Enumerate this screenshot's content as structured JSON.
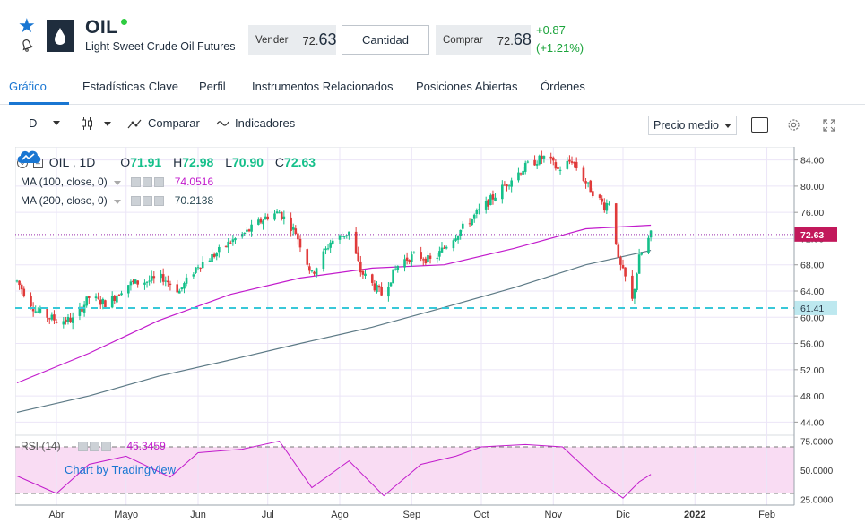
{
  "header": {
    "symbol": "OIL",
    "name": "Light Sweet Crude Oil Futures",
    "sell_label": "Vender",
    "sell_price_small": "72.",
    "sell_price_big": "63",
    "quantity_label": "Cantidad",
    "buy_label": "Comprar",
    "buy_price_small": "72.",
    "buy_price_big": "68",
    "change": "+0.87",
    "change_pct": "(+1.21%)"
  },
  "tabs": [
    {
      "label": "Gráfico"
    },
    {
      "label": "Estadísticas Clave"
    },
    {
      "label": "Perfil"
    },
    {
      "label": "Instrumentos Relacionados"
    },
    {
      "label": "Posiciones Abiertas"
    },
    {
      "label": "Órdenes"
    }
  ],
  "toolbar": {
    "interval": "D",
    "compare": "Comparar",
    "indicators": "Indicadores",
    "price_type": "Precio medio"
  },
  "legend": {
    "title": "OIL , 1D",
    "o_label": "O",
    "o": "71.91",
    "h_label": "H",
    "h": "72.98",
    "l_label": "L",
    "l": "70.90",
    "c_label": "C",
    "c": "72.63",
    "ma100_label": "MA (100, close, 0)",
    "ma100_value": "74.0516",
    "ma200_label": "MA (200, close, 0)",
    "ma200_value": "70.2138",
    "rsi_label": "RSI (14)",
    "rsi_value": "46.3459"
  },
  "branding": "Chart by TradingView",
  "colors": {
    "accent": "#1976d2",
    "up": "#15c08a",
    "down": "#e03a3a",
    "ma100": "#c21bcc",
    "ma200": "#5d7a86",
    "support": "#38c8d8",
    "rsi_fill": "#f9dcf3"
  },
  "chart_data": {
    "type": "candlestick",
    "x_labels": [
      "Abr",
      "Mayo",
      "Jun",
      "Jul",
      "Ago",
      "Sep",
      "Oct",
      "Nov",
      "Dic",
      "2022",
      "Feb"
    ],
    "y_ticks": [
      "84.00",
      "80.00",
      "76.00",
      "72.00",
      "68.00",
      "64.00",
      "60.00",
      "56.00",
      "52.00",
      "48.00",
      "44.00"
    ],
    "ylim": [
      44,
      86
    ],
    "last_price_label": "72.63",
    "support_label": "61.41",
    "close_path": [
      [
        "Mar 15",
        65.5
      ],
      [
        "Mar 23",
        61.0
      ],
      [
        "Apr 1",
        59.5
      ],
      [
        "Apr 8",
        59.6
      ],
      [
        "Apr 15",
        63.0
      ],
      [
        "Apr 23",
        62.0
      ],
      [
        "May 1",
        65.0
      ],
      [
        "May 10",
        65.5
      ],
      [
        "May 17",
        66.0
      ],
      [
        "May 24",
        64.0
      ],
      [
        "Jun 1",
        68.0
      ],
      [
        "Jun 8",
        69.5
      ],
      [
        "Jun 15",
        71.5
      ],
      [
        "Jun 22",
        73.0
      ],
      [
        "Jul 1",
        75.5
      ],
      [
        "Jul 6",
        76.0
      ],
      [
        "Jul 13",
        73.0
      ],
      [
        "Jul 20",
        66.5
      ],
      [
        "Jul 28",
        71.5
      ],
      [
        "Aug 5",
        73.0
      ],
      [
        "Aug 10",
        67.0
      ],
      [
        "Aug 19",
        63.5
      ],
      [
        "Aug 27",
        68.5
      ],
      [
        "Sep 3",
        69.5
      ],
      [
        "Sep 10",
        68.5
      ],
      [
        "Sep 17",
        71.5
      ],
      [
        "Sep 24",
        74.0
      ],
      [
        "Oct 1",
        76.5
      ],
      [
        "Oct 8",
        79.0
      ],
      [
        "Oct 15",
        81.5
      ],
      [
        "Oct 22",
        83.5
      ],
      [
        "Oct 29",
        84.5
      ],
      [
        "Nov 3",
        82.5
      ],
      [
        "Nov 9",
        84.0
      ],
      [
        "Nov 16",
        80.0
      ],
      [
        "Nov 23",
        77.0
      ],
      [
        "Nov 26",
        78.0
      ],
      [
        "Nov 29",
        68.5
      ],
      [
        "Dec 2",
        66.0
      ],
      [
        "Dec 5",
        62.5
      ],
      [
        "Dec 8",
        69.0
      ],
      [
        "Dec 13",
        72.6
      ]
    ],
    "ma100_path": [
      [
        "Mar 15",
        50.0
      ],
      [
        "Apr 15",
        54.5
      ],
      [
        "May 15",
        59.5
      ],
      [
        "Jun 15",
        63.5
      ],
      [
        "Jul 15",
        66.0
      ],
      [
        "Aug 15",
        67.5
      ],
      [
        "Sep 15",
        68.0
      ],
      [
        "Oct 15",
        70.5
      ],
      [
        "Nov 15",
        73.5
      ],
      [
        "Dec 13",
        74.05
      ]
    ],
    "ma200_path": [
      [
        "Mar 15",
        45.5
      ],
      [
        "Apr 15",
        48.0
      ],
      [
        "May 15",
        51.0
      ],
      [
        "Jun 15",
        53.5
      ],
      [
        "Jul 15",
        56.0
      ],
      [
        "Aug 15",
        58.5
      ],
      [
        "Sep 15",
        61.5
      ],
      [
        "Oct 15",
        64.5
      ],
      [
        "Nov 15",
        68.0
      ],
      [
        "Dec 13",
        70.21
      ]
    ],
    "rsi": {
      "ticks": [
        "75.0000",
        "50.0000",
        "25.0000"
      ],
      "ylim": [
        20,
        80
      ],
      "bands": [
        70,
        30
      ],
      "path": [
        [
          "Mar 15",
          45
        ],
        [
          "Apr 1",
          30
        ],
        [
          "Apr 15",
          55
        ],
        [
          "May 1",
          62
        ],
        [
          "May 20",
          44
        ],
        [
          "Jun 1",
          65
        ],
        [
          "Jun 20",
          68
        ],
        [
          "Jul 6",
          75
        ],
        [
          "Jul 20",
          35
        ],
        [
          "Aug 5",
          58
        ],
        [
          "Aug 20",
          28
        ],
        [
          "Sep 5",
          55
        ],
        [
          "Sep 20",
          62
        ],
        [
          "Oct 1",
          70
        ],
        [
          "Oct 20",
          72
        ],
        [
          "Nov 5",
          70
        ],
        [
          "Nov 20",
          42
        ],
        [
          "Dec 1",
          26
        ],
        [
          "Dec 8",
          40
        ],
        [
          "Dec 13",
          46.35
        ]
      ]
    }
  }
}
